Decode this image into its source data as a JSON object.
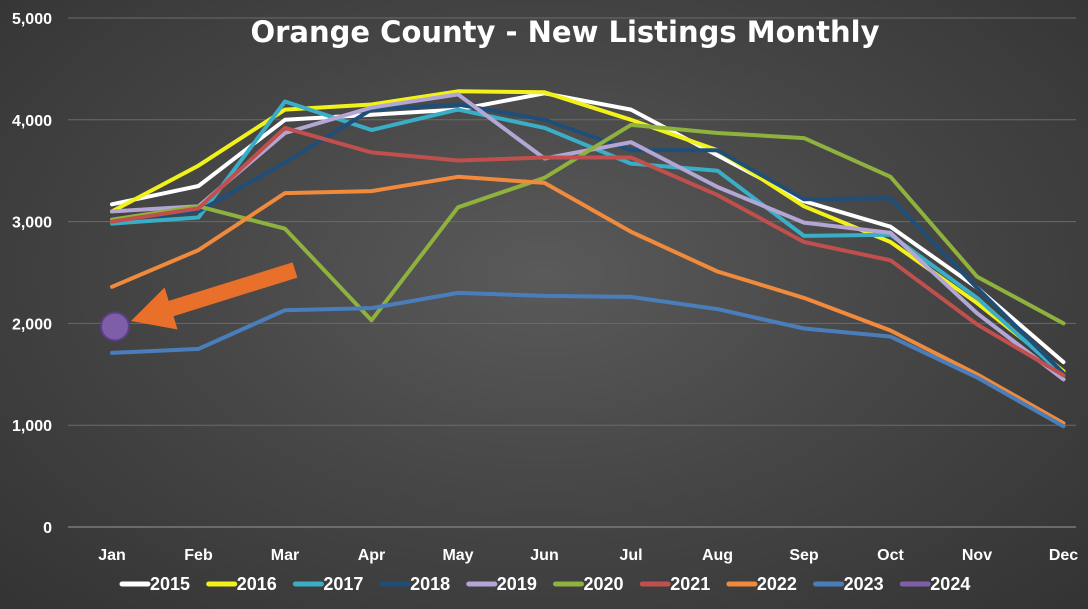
{
  "chart_data": {
    "type": "line",
    "title": "Orange County - New Listings Monthly",
    "xlabel": "",
    "ylabel": "",
    "ylim": [
      0,
      5000
    ],
    "yticks": [
      0,
      1000,
      2000,
      3000,
      4000,
      5000
    ],
    "ytick_labels": [
      "0",
      "1,000",
      "2,000",
      "3,000",
      "4,000",
      "5,000"
    ],
    "grid": true,
    "legend_position": "bottom",
    "categories": [
      "Jan",
      "Feb",
      "Mar",
      "Apr",
      "May",
      "Jun",
      "Jul",
      "Aug",
      "Sep",
      "Oct",
      "Nov",
      "Dec"
    ],
    "series": [
      {
        "name": "2015",
        "color": "#ffffff",
        "values": [
          3170,
          3350,
          4000,
          4050,
          4100,
          4260,
          4100,
          3650,
          3200,
          2950,
          2350,
          1620
        ]
      },
      {
        "name": "2016",
        "color": "#f2f21a",
        "values": [
          3100,
          3550,
          4100,
          4150,
          4280,
          4270,
          4000,
          3700,
          3150,
          2800,
          2200,
          1530
        ]
      },
      {
        "name": "2017",
        "color": "#3aaec6",
        "values": [
          2980,
          3040,
          4180,
          3900,
          4100,
          3920,
          3570,
          3500,
          2860,
          2870,
          2250,
          1490
        ]
      },
      {
        "name": "2018",
        "color": "#1f4e79",
        "values": [
          3010,
          3100,
          3580,
          4100,
          4150,
          4000,
          3700,
          3700,
          3220,
          3230,
          2350,
          1510
        ]
      },
      {
        "name": "2019",
        "color": "#b4a6d4",
        "values": [
          3100,
          3150,
          3870,
          4120,
          4250,
          3620,
          3780,
          3340,
          2990,
          2890,
          2100,
          1450
        ]
      },
      {
        "name": "2020",
        "color": "#8fb13e",
        "values": [
          3020,
          3150,
          2930,
          2030,
          3140,
          3430,
          3950,
          3870,
          3820,
          3440,
          2460,
          2000
        ]
      },
      {
        "name": "2021",
        "color": "#c0504d",
        "values": [
          3000,
          3130,
          3920,
          3680,
          3600,
          3630,
          3630,
          3260,
          2800,
          2620,
          1990,
          1490
        ]
      },
      {
        "name": "2022",
        "color": "#f08a3c",
        "values": [
          2360,
          2720,
          3280,
          3300,
          3440,
          3380,
          2900,
          2510,
          2250,
          1930,
          1500,
          1020
        ]
      },
      {
        "name": "2023",
        "color": "#4a7ebb",
        "values": [
          1710,
          1750,
          2130,
          2150,
          2300,
          2270,
          2260,
          2140,
          1950,
          1870,
          1470,
          990
        ]
      },
      {
        "name": "2024",
        "color": "#7e5fa7",
        "values": [
          1970,
          null,
          null,
          null,
          null,
          null,
          null,
          null,
          null,
          null,
          null,
          null
        ]
      }
    ],
    "annotation": {
      "type": "arrow",
      "color": "#e8702a",
      "points_to": "2024 Jan"
    }
  }
}
